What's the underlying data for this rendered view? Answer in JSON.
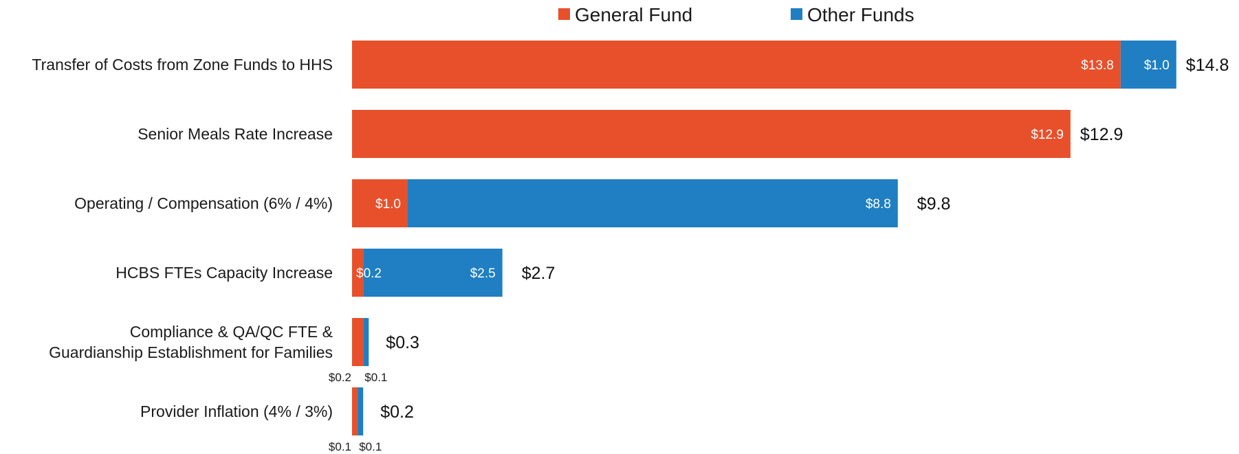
{
  "chart_data": {
    "type": "bar",
    "orientation": "horizontal",
    "stacked": true,
    "categories": [
      [
        "Transfer of Costs from Zone Funds to HHS"
      ],
      [
        "Senior Meals Rate Increase"
      ],
      [
        "Operating / Compensation (6% / 4%)"
      ],
      [
        "HCBS FTEs Capacity Increase"
      ],
      [
        "Compliance & QA/QC FTE &",
        "Guardianship Establishment for Families"
      ],
      [
        "Provider Inflation (4% / 3%)"
      ]
    ],
    "series": [
      {
        "name": "General Fund",
        "color": "#e8502b",
        "values": [
          13.8,
          12.9,
          1.0,
          0.2,
          0.2,
          0.1
        ],
        "labels": [
          "$13.8",
          "$12.9",
          "$1.0",
          "$0.2",
          "$0.2",
          "$0.1"
        ]
      },
      {
        "name": "Other Funds",
        "color": "#1f7fc2",
        "values": [
          1.0,
          0,
          8.8,
          2.5,
          0.1,
          0.1
        ],
        "labels": [
          "$1.0",
          "",
          "$8.8",
          "$2.5",
          "$0.1",
          "$0.1"
        ]
      }
    ],
    "totals": [
      "$14.8",
      "$12.9",
      "$9.8",
      "$2.7",
      "$0.3",
      "$0.2"
    ],
    "xlim": [
      0,
      14.8
    ],
    "grid": false,
    "legend_position": "top"
  }
}
